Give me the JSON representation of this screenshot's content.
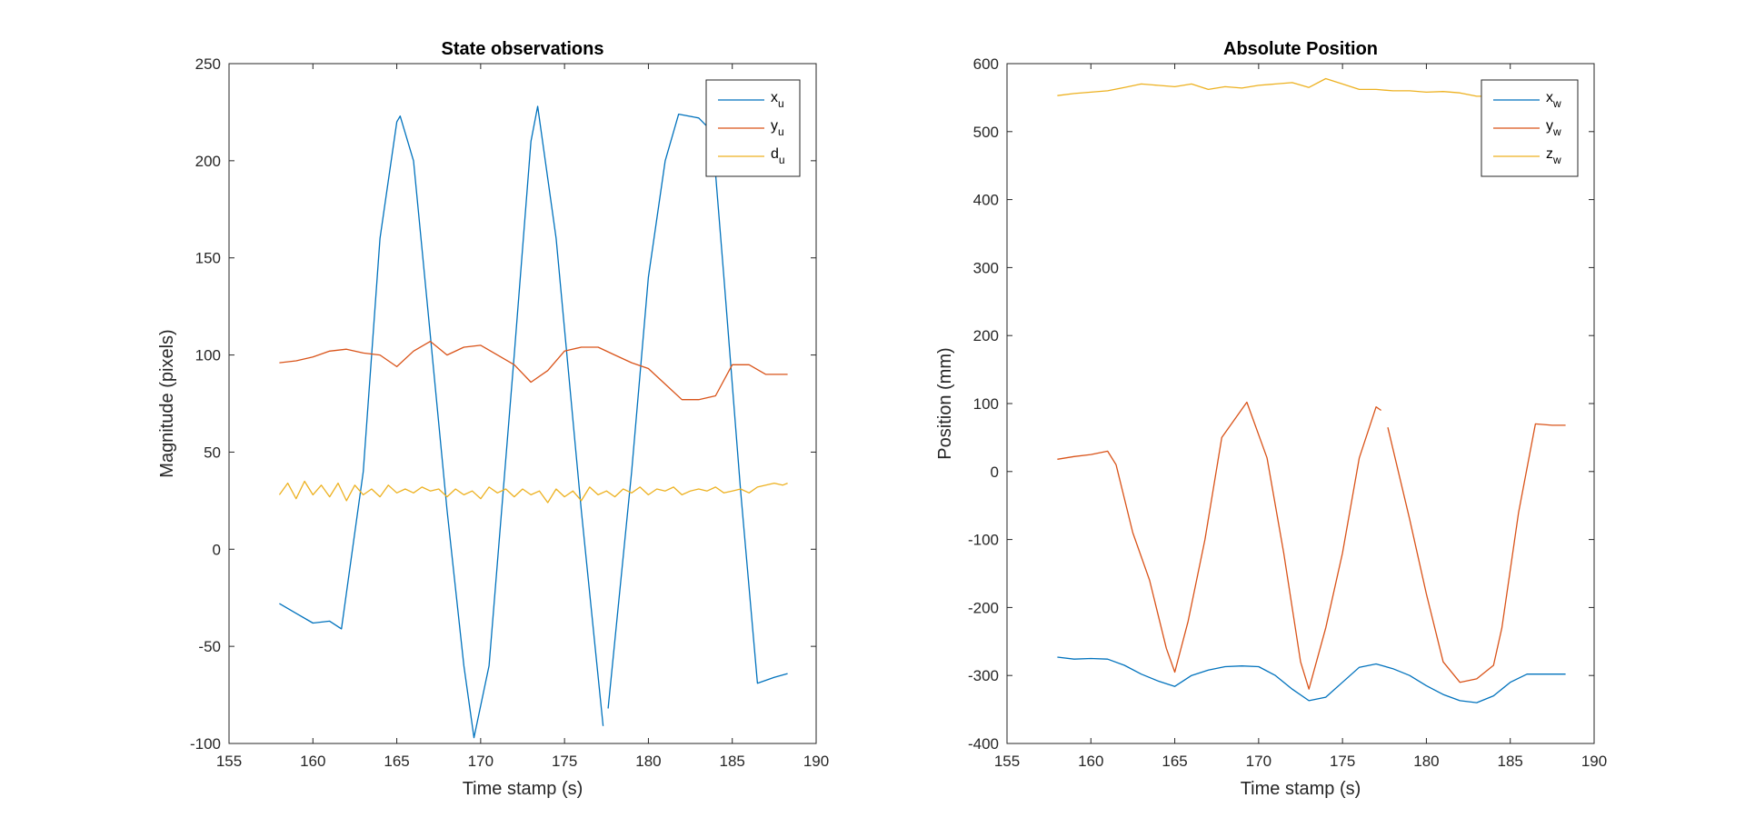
{
  "colors": {
    "x": "#0072BD",
    "y": "#D95319",
    "z": "#EDB120",
    "axis": "#262626"
  },
  "chart_data": [
    {
      "type": "line",
      "title": "State observations",
      "xlabel": "Time stamp (s)",
      "ylabel": "Magnitude (pixels)",
      "xlim": [
        155,
        190
      ],
      "ylim": [
        -100,
        250
      ],
      "xticks": [
        155,
        160,
        165,
        170,
        175,
        180,
        185,
        190
      ],
      "yticks": [
        -100,
        -50,
        0,
        50,
        100,
        150,
        200,
        250
      ],
      "x_tick_labels": [
        "155",
        "160",
        "165",
        "170",
        "175",
        "180",
        "185",
        "190"
      ],
      "y_tick_labels": [
        "-100",
        "-50",
        "0",
        "50",
        "100",
        "150",
        "200",
        "250"
      ],
      "legend_position": "top-right",
      "series": [
        {
          "name": "x",
          "sub": "u",
          "color": "#0072BD",
          "x": [
            158,
            159,
            160,
            161,
            161.7,
            163,
            164,
            165,
            165.2,
            166,
            167,
            168,
            169,
            169.6,
            170.5,
            172,
            173,
            173.4,
            174.5,
            176,
            177.3
          ],
          "y": [
            -28,
            -33,
            -38,
            -37,
            -41,
            40,
            160,
            220,
            223,
            200,
            110,
            20,
            -60,
            -97,
            -60,
            100,
            210,
            228,
            160,
            20,
            -91
          ],
          "x2": [
            177.6,
            179,
            180,
            181,
            181.8,
            183,
            183.8,
            184.5,
            185.5,
            186.5,
            187.5,
            188.3
          ],
          "y2": [
            -82,
            40,
            140,
            200,
            224,
            222,
            215,
            140,
            30,
            -69,
            -66,
            -64
          ]
        },
        {
          "name": "y",
          "sub": "u",
          "color": "#D95319",
          "x": [
            158,
            159,
            160,
            161,
            162,
            163,
            164,
            165,
            166,
            167,
            168,
            169,
            170,
            171,
            172,
            173,
            174,
            175,
            176,
            177,
            178,
            179,
            180,
            181,
            182,
            183,
            184,
            185,
            186,
            187,
            188.3
          ],
          "y": [
            96,
            97,
            99,
            102,
            103,
            101,
            100,
            94,
            102,
            107,
            100,
            104,
            105,
            100,
            95,
            86,
            92,
            102,
            104,
            104,
            100,
            96,
            93,
            85,
            77,
            77,
            79,
            95,
            95,
            90,
            90
          ]
        },
        {
          "name": "d",
          "sub": "u",
          "color": "#EDB120",
          "x": [
            158,
            158.5,
            159,
            159.5,
            160,
            160.5,
            161,
            161.5,
            162,
            162.5,
            163,
            163.5,
            164,
            164.5,
            165,
            165.5,
            166,
            166.5,
            167,
            167.5,
            168,
            168.5,
            169,
            169.5,
            170,
            170.5,
            171,
            171.5,
            172,
            172.5,
            173,
            173.5,
            174,
            174.5,
            175,
            175.5,
            176,
            176.5,
            177,
            177.5,
            178,
            178.5,
            179,
            179.5,
            180,
            180.5,
            181,
            181.5,
            182,
            182.5,
            183,
            183.5,
            184,
            184.5,
            185,
            185.5,
            186,
            186.5,
            187,
            187.5,
            188,
            188.3
          ],
          "y": [
            28,
            34,
            26,
            35,
            28,
            33,
            27,
            34,
            25,
            33,
            28,
            31,
            27,
            33,
            29,
            31,
            29,
            32,
            30,
            31,
            27,
            31,
            28,
            30,
            26,
            32,
            29,
            31,
            27,
            31,
            28,
            30,
            24,
            31,
            27,
            30,
            25,
            32,
            28,
            30,
            27,
            31,
            29,
            32,
            28,
            31,
            30,
            32,
            28,
            30,
            31,
            30,
            32,
            29,
            30,
            31,
            29,
            32,
            33,
            34,
            33,
            34
          ]
        }
      ]
    },
    {
      "type": "line",
      "title": "Absolute Position",
      "xlabel": "Time stamp (s)",
      "ylabel": "Position (mm)",
      "xlim": [
        155,
        190
      ],
      "ylim": [
        -400,
        600
      ],
      "xticks": [
        155,
        160,
        165,
        170,
        175,
        180,
        185,
        190
      ],
      "yticks": [
        -400,
        -300,
        -200,
        -100,
        0,
        100,
        200,
        300,
        400,
        500,
        600
      ],
      "x_tick_labels": [
        "155",
        "160",
        "165",
        "170",
        "175",
        "180",
        "185",
        "190"
      ],
      "y_tick_labels": [
        "-400",
        "-300",
        "-200",
        "-100",
        "0",
        "100",
        "200",
        "300",
        "400",
        "500",
        "600"
      ],
      "legend_position": "top-right",
      "series": [
        {
          "name": "x",
          "sub": "w",
          "color": "#0072BD",
          "x": [
            158,
            159,
            160,
            161,
            162,
            163,
            164,
            165,
            166,
            167,
            168,
            169,
            170,
            171,
            172,
            173,
            174,
            175,
            176,
            177,
            178,
            179,
            180,
            181,
            182,
            183,
            184,
            185,
            186,
            187,
            188.3
          ],
          "y": [
            -273,
            -276,
            -275,
            -276,
            -285,
            -298,
            -308,
            -316,
            -300,
            -292,
            -287,
            -286,
            -287,
            -300,
            -320,
            -337,
            -332,
            -310,
            -288,
            -283,
            -290,
            -300,
            -315,
            -328,
            -337,
            -340,
            -330,
            -310,
            -298,
            -298,
            -298
          ]
        },
        {
          "name": "y",
          "sub": "w",
          "color": "#D95319",
          "x": [
            158,
            159,
            160,
            161,
            161.5,
            162.5,
            163.5,
            164.5,
            165,
            165.8,
            166.8,
            167.8,
            169.3,
            170.5,
            171.5,
            172.5,
            173,
            174,
            175,
            176,
            177,
            177.3
          ],
          "y": [
            18,
            22,
            25,
            30,
            10,
            -90,
            -160,
            -260,
            -295,
            -220,
            -100,
            50,
            102,
            20,
            -120,
            -280,
            -320,
            -230,
            -120,
            20,
            95,
            90
          ],
          "x2": [
            177.7,
            179,
            180,
            181,
            182,
            183,
            184,
            184.5,
            185.5,
            186.5,
            187.5,
            188.3
          ],
          "y2": [
            65,
            -70,
            -180,
            -280,
            -310,
            -305,
            -285,
            -230,
            -60,
            70,
            68,
            68
          ]
        },
        {
          "name": "z",
          "sub": "w",
          "color": "#EDB120",
          "x": [
            158,
            159,
            160,
            161,
            162,
            163,
            164,
            165,
            166,
            167,
            168,
            169,
            170,
            171,
            172,
            173,
            174,
            175,
            176,
            177,
            178,
            179,
            180,
            181,
            182,
            183,
            184,
            185,
            186,
            187,
            188.3
          ],
          "y": [
            553,
            556,
            558,
            560,
            565,
            570,
            568,
            566,
            570,
            562,
            566,
            564,
            568,
            570,
            572,
            565,
            578,
            570,
            562,
            562,
            560,
            560,
            558,
            559,
            557,
            552,
            552,
            550,
            552,
            550,
            550
          ]
        }
      ]
    }
  ]
}
